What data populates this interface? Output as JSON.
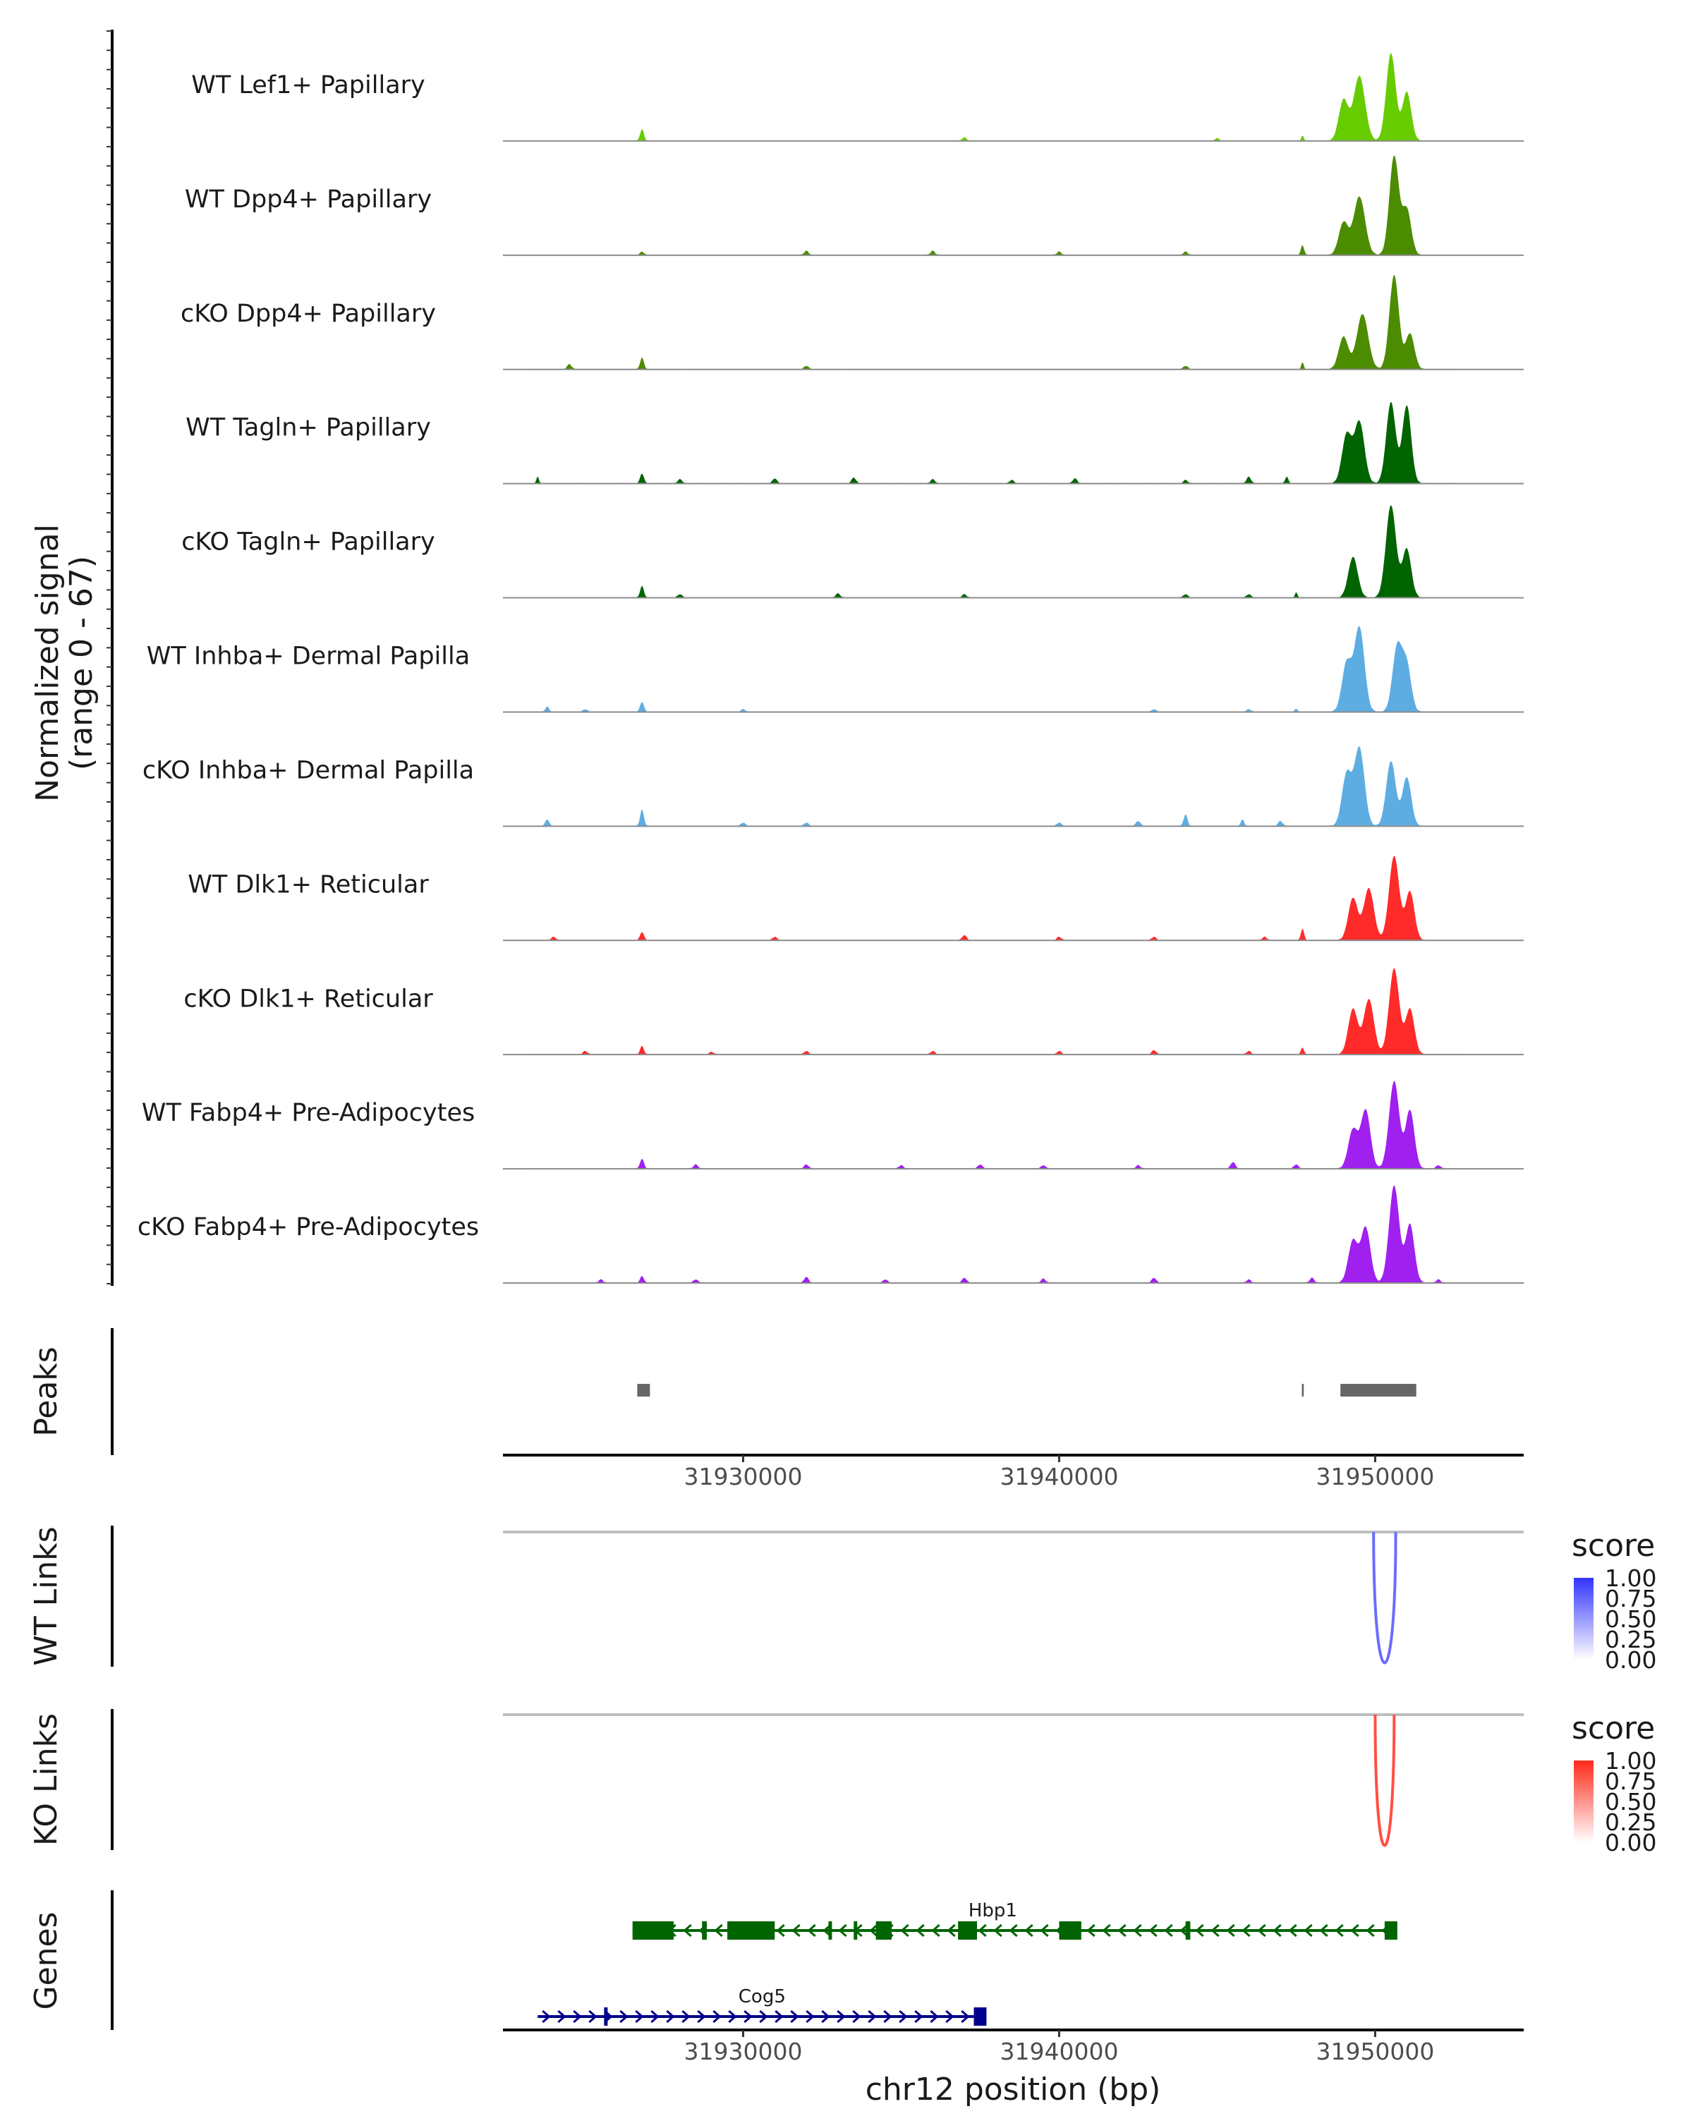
{
  "chart_data": {
    "type": "area",
    "chromosome": "chr12",
    "x_title": "chr12 position (bp)",
    "x_range": [
      31922400,
      31954700
    ],
    "x_ticks": [
      31930000,
      31940000,
      31950000
    ],
    "x_tick_labels": [
      "31930000",
      "31940000",
      "31950000"
    ],
    "coverage": {
      "y_title_line1": "Normalized signal",
      "y_title_line2": "(range 0 - 67)",
      "y_range": [
        0,
        67
      ],
      "tracks": [
        {
          "name": "WT Lef1+ Papillary",
          "color": "#66CC00",
          "peaks": [
            [
              31926800,
              7,
              60
            ],
            [
              31947700,
              3,
              40
            ],
            [
              31949000,
              25,
              150
            ],
            [
              31949500,
              40,
              180
            ],
            [
              31950500,
              54,
              150
            ],
            [
              31951000,
              30,
              140
            ]
          ],
          "noise": [
            [
              31937000,
              2
            ],
            [
              31945000,
              1.5
            ]
          ]
        },
        {
          "name": "WT Dpp4+ Papillary",
          "color": "#4C8C00",
          "peaks": [
            [
              31926800,
              2,
              60
            ],
            [
              31947700,
              6,
              50
            ],
            [
              31949000,
              20,
              150
            ],
            [
              31949500,
              36,
              180
            ],
            [
              31950600,
              61,
              150
            ],
            [
              31951000,
              28,
              140
            ]
          ],
          "noise": [
            [
              31932000,
              2.5
            ],
            [
              31936000,
              2.5
            ],
            [
              31940000,
              2
            ],
            [
              31944000,
              2
            ]
          ]
        },
        {
          "name": "cKO Dpp4+ Papillary",
          "color": "#4C8C00",
          "peaks": [
            [
              31926800,
              7,
              60
            ],
            [
              31947700,
              4,
              40
            ],
            [
              31949000,
              20,
              150
            ],
            [
              31949600,
              34,
              180
            ],
            [
              31950600,
              58,
              150
            ],
            [
              31951100,
              22,
              140
            ]
          ],
          "noise": [
            [
              31924500,
              3
            ],
            [
              31932000,
              2
            ],
            [
              31944000,
              2
            ]
          ]
        },
        {
          "name": "WT Tagln+ Papillary",
          "color": "#006400",
          "peaks": [
            [
              31923500,
              4,
              40
            ],
            [
              31926800,
              6,
              60
            ],
            [
              31947200,
              4,
              50
            ],
            [
              31949100,
              30,
              150
            ],
            [
              31949500,
              38,
              160
            ],
            [
              31950500,
              50,
              150
            ],
            [
              31951000,
              48,
              140
            ]
          ],
          "noise": [
            [
              31928000,
              2.5
            ],
            [
              31931000,
              3
            ],
            [
              31933500,
              3.5
            ],
            [
              31936000,
              2.5
            ],
            [
              31938500,
              2
            ],
            [
              31940500,
              3
            ],
            [
              31944000,
              2
            ],
            [
              31946000,
              4
            ]
          ]
        },
        {
          "name": "cKO Tagln+ Papillary",
          "color": "#006400",
          "peaks": [
            [
              31926800,
              7,
              60
            ],
            [
              31947500,
              3,
              40
            ],
            [
              31949300,
              25,
              150
            ],
            [
              31950500,
              57,
              160
            ],
            [
              31951000,
              30,
              140
            ]
          ],
          "noise": [
            [
              31928000,
              2
            ],
            [
              31933000,
              2.5
            ],
            [
              31937000,
              2
            ],
            [
              31944000,
              2
            ],
            [
              31946000,
              2
            ]
          ]
        },
        {
          "name": "WT Inhba+ Dermal Papilla",
          "color": "#5DADE2",
          "peaks": [
            [
              31923800,
              3,
              60
            ],
            [
              31926800,
              6,
              60
            ],
            [
              31947500,
              2,
              40
            ],
            [
              31949100,
              30,
              150
            ],
            [
              31949500,
              52,
              160
            ],
            [
              31950700,
              40,
              150
            ],
            [
              31951000,
              28,
              140
            ]
          ],
          "noise": [
            [
              31925000,
              1.5
            ],
            [
              31930000,
              1.5
            ],
            [
              31943000,
              1.5
            ],
            [
              31946000,
              1.5
            ]
          ]
        },
        {
          "name": "cKO Inhba+ Dermal Papilla",
          "color": "#5DADE2",
          "peaks": [
            [
              31923800,
              4,
              60
            ],
            [
              31926800,
              10,
              60
            ],
            [
              31944000,
              7,
              60
            ],
            [
              31945800,
              4,
              50
            ],
            [
              31949100,
              32,
              150
            ],
            [
              31949500,
              48,
              160
            ],
            [
              31950500,
              40,
              150
            ],
            [
              31951000,
              30,
              140
            ]
          ],
          "noise": [
            [
              31930000,
              2
            ],
            [
              31932000,
              2
            ],
            [
              31940000,
              2
            ],
            [
              31942500,
              3
            ],
            [
              31947000,
              3
            ]
          ]
        },
        {
          "name": "WT Dlk1+ Reticular",
          "color": "#FF2A2A",
          "peaks": [
            [
              31926800,
              5,
              60
            ],
            [
              31947700,
              7,
              50
            ],
            [
              31949300,
              26,
              150
            ],
            [
              31949800,
              32,
              160
            ],
            [
              31950600,
              52,
              160
            ],
            [
              31951100,
              30,
              140
            ]
          ],
          "noise": [
            [
              31924000,
              2
            ],
            [
              31931000,
              2
            ],
            [
              31937000,
              3
            ],
            [
              31940000,
              2
            ],
            [
              31943000,
              2
            ],
            [
              31946500,
              2
            ]
          ]
        },
        {
          "name": "cKO Dlk1+ Reticular",
          "color": "#FF2A2A",
          "peaks": [
            [
              31926800,
              5,
              60
            ],
            [
              31947700,
              4,
              50
            ],
            [
              31949300,
              28,
              150
            ],
            [
              31949800,
              34,
              160
            ],
            [
              31950600,
              53,
              160
            ],
            [
              31951100,
              28,
              140
            ]
          ],
          "noise": [
            [
              31925000,
              2
            ],
            [
              31929000,
              1.5
            ],
            [
              31932000,
              2
            ],
            [
              31936000,
              2
            ],
            [
              31940000,
              2
            ],
            [
              31943000,
              2.5
            ],
            [
              31946000,
              2
            ]
          ]
        },
        {
          "name": "WT Fabp4+ Pre-Adipocytes",
          "color": "#A020F0",
          "peaks": [
            [
              31926800,
              6,
              60
            ],
            [
              31949300,
              24,
              150
            ],
            [
              31949700,
              36,
              150
            ],
            [
              31950600,
              54,
              160
            ],
            [
              31951100,
              36,
              140
            ]
          ],
          "noise": [
            [
              31928500,
              2.5
            ],
            [
              31932000,
              2.5
            ],
            [
              31935000,
              2
            ],
            [
              31937500,
              2.5
            ],
            [
              31939500,
              2
            ],
            [
              31942500,
              2
            ],
            [
              31945500,
              4
            ],
            [
              31947500,
              2.5
            ],
            [
              31952000,
              2
            ]
          ]
        },
        {
          "name": "cKO Fabp4+ Pre-Adipocytes",
          "color": "#A020F0",
          "peaks": [
            [
              31926800,
              4,
              60
            ],
            [
              31949300,
              26,
              150
            ],
            [
              31949700,
              34,
              150
            ],
            [
              31950600,
              60,
              160
            ],
            [
              31951100,
              36,
              140
            ]
          ],
          "noise": [
            [
              31925500,
              2
            ],
            [
              31928500,
              2
            ],
            [
              31932000,
              3.5
            ],
            [
              31934500,
              2
            ],
            [
              31937000,
              3
            ],
            [
              31939500,
              2.5
            ],
            [
              31943000,
              3
            ],
            [
              31946000,
              2
            ],
            [
              31948000,
              3
            ],
            [
              31952000,
              2
            ]
          ]
        }
      ]
    },
    "peaks_track": {
      "label": "Peaks",
      "regions": [
        [
          31926650,
          31927050
        ],
        [
          31947680,
          31947740
        ],
        [
          31948900,
          31951300
        ]
      ]
    },
    "links": [
      {
        "label": "WT Links",
        "color_high": "#3333FF",
        "color_low": "#FFFFFF",
        "links": [
          [
            31949950,
            31950650,
            0.72
          ]
        ],
        "legend_title": "score",
        "legend_ticks": [
          "1.00",
          "0.75",
          "0.50",
          "0.25",
          "0.00"
        ]
      },
      {
        "label": "KO Links",
        "color_high": "#FF2A1A",
        "color_low": "#FFFFFF",
        "links": [
          [
            31950000,
            31950600,
            0.82
          ]
        ],
        "legend_title": "score",
        "legend_ticks": [
          "1.00",
          "0.75",
          "0.50",
          "0.25",
          "0.00"
        ]
      }
    ],
    "genes_track": {
      "label": "Genes",
      "genes": [
        {
          "name": "Hbp1",
          "strand": "-",
          "color": "#006400",
          "start": 31926500,
          "end": 31950700,
          "exons": [
            [
              31926500,
              31927800
            ],
            [
              31928700,
              31928850
            ],
            [
              31929500,
              31931000
            ],
            [
              31932700,
              31932800
            ],
            [
              31933500,
              31933600
            ],
            [
              31934200,
              31934700
            ],
            [
              31936800,
              31937400
            ],
            [
              31940000,
              31940700
            ],
            [
              31944000,
              31944150
            ],
            [
              31950300,
              31950700
            ]
          ]
        },
        {
          "name": "Cog5",
          "strand": "+",
          "color": "#00008B",
          "start": 31923500,
          "end": 31937700,
          "exons": [
            [
              31925600,
              31925700
            ],
            [
              31937300,
              31937700
            ]
          ]
        }
      ]
    }
  }
}
